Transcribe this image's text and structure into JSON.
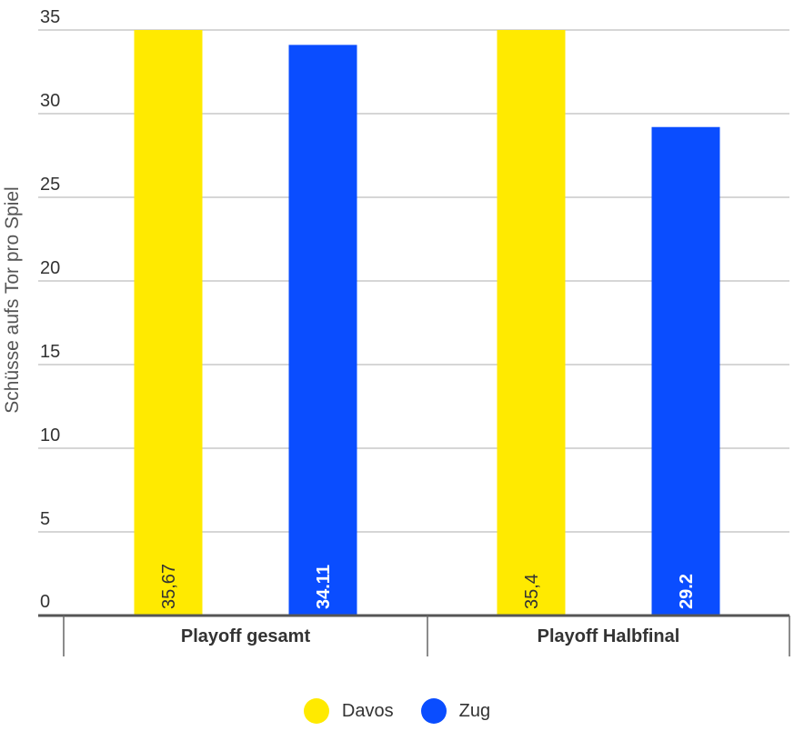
{
  "chart_data": {
    "type": "bar",
    "categories": [
      "Playoff gesamt",
      "Playoff Halbfinal"
    ],
    "series": [
      {
        "name": "Davos",
        "values": [
          35.67,
          35.4
        ],
        "labels": [
          "35,67",
          "35,4"
        ],
        "color": "#FFEA00"
      },
      {
        "name": "Zug",
        "values": [
          34.11,
          29.2
        ],
        "labels": [
          "34.11",
          "29.2"
        ],
        "color": "#0A4DFF"
      }
    ],
    "ylabel": "Schüsse aufs Tor pro Spiel",
    "ylim": [
      0,
      35
    ],
    "yticks": [
      "0",
      "5",
      "10",
      "15",
      "20",
      "25",
      "30",
      "35"
    ],
    "grid": true,
    "legend_position": "bottom",
    "value_label_colors": {
      "Davos": "#333333",
      "Zug": "#ffffff"
    },
    "axis_color": "#666666",
    "grid_color": "#c8c8c8"
  }
}
